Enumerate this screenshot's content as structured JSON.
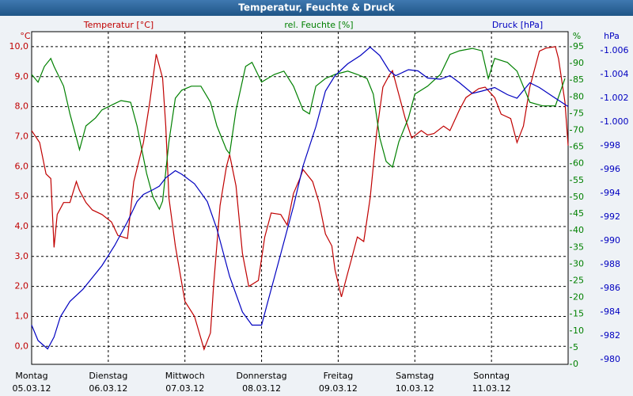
{
  "chart_data": {
    "type": "line",
    "title": "Temperatur, Feuchte & Druck",
    "xlim": [
      0,
      168
    ],
    "xticks": [
      {
        "value": 0,
        "label": "Montag",
        "date": "05.03.12"
      },
      {
        "value": 24,
        "label": "Dienstag",
        "date": "06.03.12"
      },
      {
        "value": 48,
        "label": "Mittwoch",
        "date": "07.03.12"
      },
      {
        "value": 72,
        "label": "Donnerstag",
        "date": "08.03.12"
      },
      {
        "value": 96,
        "label": "Freitag",
        "date": "09.03.12"
      },
      {
        "value": 120,
        "label": "Samstag",
        "date": "10.03.12"
      },
      {
        "value": 144,
        "label": "Sonntag",
        "date": "11.03.12"
      }
    ],
    "grid": true,
    "ylabel": "Temperatur [°C]",
    "yunit": "°C",
    "ylim": [
      -0.6,
      10.5
    ],
    "yticks": [
      {
        "value": 0,
        "label": "0,0"
      },
      {
        "value": 1,
        "label": "1,0"
      },
      {
        "value": 2,
        "label": "2,0"
      },
      {
        "value": 3,
        "label": "3,0"
      },
      {
        "value": 4,
        "label": "4,0"
      },
      {
        "value": 5,
        "label": "5,0"
      },
      {
        "value": 6,
        "label": "6,0"
      },
      {
        "value": 7,
        "label": "7,0"
      },
      {
        "value": 8,
        "label": "8,0"
      },
      {
        "value": 9,
        "label": "9,0"
      },
      {
        "value": 10,
        "label": "10,0"
      }
    ],
    "y2label": "rel. Feuchte [%]",
    "y2unit": "%",
    "y2lim": [
      0,
      99.5
    ],
    "y2ticks": [
      0,
      5,
      10,
      15,
      20,
      25,
      30,
      35,
      40,
      45,
      50,
      55,
      60,
      65,
      70,
      75,
      80,
      85,
      90,
      95
    ],
    "y3label": "Druck [hPa]",
    "y3unit": "hPa",
    "y3lim": [
      979.6,
      1007.6
    ],
    "y3ticks": [
      980,
      982,
      984,
      986,
      988,
      990,
      992,
      994,
      996,
      998,
      {
        "value": 1000,
        "label": "1.000"
      },
      {
        "value": 1002,
        "label": "1.002"
      },
      {
        "value": 1004,
        "label": "1.004"
      },
      {
        "value": 1006,
        "label": "1.006"
      }
    ],
    "series": [
      {
        "name": "Temperatur",
        "color": "#c00000",
        "axis": "y",
        "x": [
          0,
          2.5,
          4.5,
          6,
          7,
          8,
          10,
          12,
          14,
          15,
          17,
          19,
          22,
          25,
          27,
          30,
          32,
          35,
          37,
          39,
          41,
          42,
          43,
          45,
          48,
          51,
          54,
          56,
          57,
          59,
          61,
          62,
          64,
          66,
          68,
          71,
          73,
          75,
          78,
          80,
          82,
          84,
          85,
          88,
          90,
          92,
          94,
          95,
          97,
          99,
          100,
          102,
          104,
          106,
          108,
          110,
          112,
          113,
          115,
          117,
          119,
          122,
          124,
          126,
          129,
          131,
          134,
          136,
          140,
          142,
          145,
          147,
          150,
          152,
          154,
          156,
          159,
          161,
          164,
          165,
          167,
          168
        ],
        "values": [
          7.2,
          6.8,
          5.75,
          5.6,
          3.3,
          4.4,
          4.8,
          4.8,
          5.5,
          5.2,
          4.8,
          4.55,
          4.4,
          4.15,
          3.7,
          3.6,
          5.5,
          6.8,
          8.15,
          9.75,
          8.95,
          7.35,
          4.95,
          3.35,
          1.5,
          1.0,
          -0.1,
          0.45,
          2.05,
          4.7,
          6.0,
          6.4,
          5.35,
          3.1,
          2.0,
          2.2,
          3.65,
          4.45,
          4.4,
          4.05,
          5.1,
          5.6,
          5.9,
          5.5,
          4.8,
          3.75,
          3.35,
          2.55,
          1.65,
          2.45,
          2.85,
          3.65,
          3.5,
          4.95,
          7.1,
          8.65,
          9.05,
          9.2,
          8.4,
          7.6,
          6.95,
          7.2,
          7.05,
          7.1,
          7.35,
          7.2,
          7.9,
          8.3,
          8.6,
          8.65,
          8.3,
          7.75,
          7.6,
          6.8,
          7.35,
          8.65,
          9.85,
          9.95,
          10.0,
          9.6,
          8.15,
          6.7
        ]
      },
      {
        "name": "rel. Feuchte",
        "color": "#008000",
        "axis": "y2",
        "x": [
          0,
          2,
          4,
          6,
          7,
          10,
          12,
          14,
          15,
          17,
          20,
          22,
          26,
          28,
          31,
          33,
          36,
          38,
          40,
          41,
          43,
          45,
          47,
          50,
          53,
          56,
          58,
          61,
          62,
          64,
          67,
          69,
          72,
          76,
          79,
          82,
          85,
          87,
          89,
          92,
          95,
          99,
          102,
          105,
          107,
          109,
          111,
          113,
          115,
          118,
          120,
          124,
          128,
          131,
          134,
          138,
          141,
          143,
          145,
          149,
          152,
          156,
          160,
          164,
          167
        ],
        "values": [
          86.7,
          84.4,
          89.1,
          91.5,
          89.1,
          83.2,
          74.9,
          67.8,
          64.2,
          71.3,
          73.7,
          76.1,
          78,
          78.9,
          78.4,
          71.3,
          57.1,
          50,
          46.4,
          48.8,
          66.6,
          79.6,
          82,
          83.2,
          83.2,
          78.4,
          71.3,
          64.2,
          63,
          76.1,
          89.1,
          90.3,
          84.4,
          86.7,
          87.7,
          83.2,
          76.1,
          74.9,
          83.2,
          85.5,
          86.7,
          87.7,
          86.7,
          85.5,
          80.8,
          67.8,
          60.7,
          59,
          66.6,
          73.7,
          80.8,
          83.2,
          86.7,
          92.7,
          93.8,
          94.5,
          93.8,
          85.5,
          91.5,
          90.3,
          87.7,
          78.4,
          77.3,
          77.3,
          85.5
        ]
      },
      {
        "name": "Druck",
        "color": "#0000c0",
        "axis": "y3",
        "x": [
          0,
          2,
          5,
          7,
          9,
          12,
          16,
          19,
          22,
          26,
          30,
          33,
          35,
          38,
          40,
          42,
          45,
          47,
          51,
          55,
          58,
          62,
          66,
          69,
          72,
          74,
          78,
          82,
          85,
          89,
          92,
          95,
          99,
          103,
          106,
          109,
          112,
          114,
          118,
          121,
          124,
          128,
          131,
          134,
          138,
          141,
          145,
          149,
          152,
          156,
          159,
          164,
          168
        ],
        "values": [
          982.9,
          981.6,
          980.9,
          981.9,
          983.6,
          984.9,
          985.9,
          986.9,
          987.9,
          989.6,
          991.6,
          993.3,
          993.9,
          994.3,
          994.6,
          995.3,
          995.9,
          995.6,
          994.8,
          993.3,
          991,
          987,
          984,
          982.9,
          982.9,
          984.9,
          988.9,
          992.9,
          996.3,
          999.6,
          1002.6,
          1003.9,
          1004.9,
          1005.6,
          1006.3,
          1005.6,
          1004.3,
          1003.9,
          1004.4,
          1004.3,
          1003.7,
          1003.6,
          1003.9,
          1003.3,
          1002.4,
          1002.6,
          1002.9,
          1002.3,
          1002,
          1003.3,
          1002.9,
          1002,
          1001.3
        ]
      }
    ]
  }
}
